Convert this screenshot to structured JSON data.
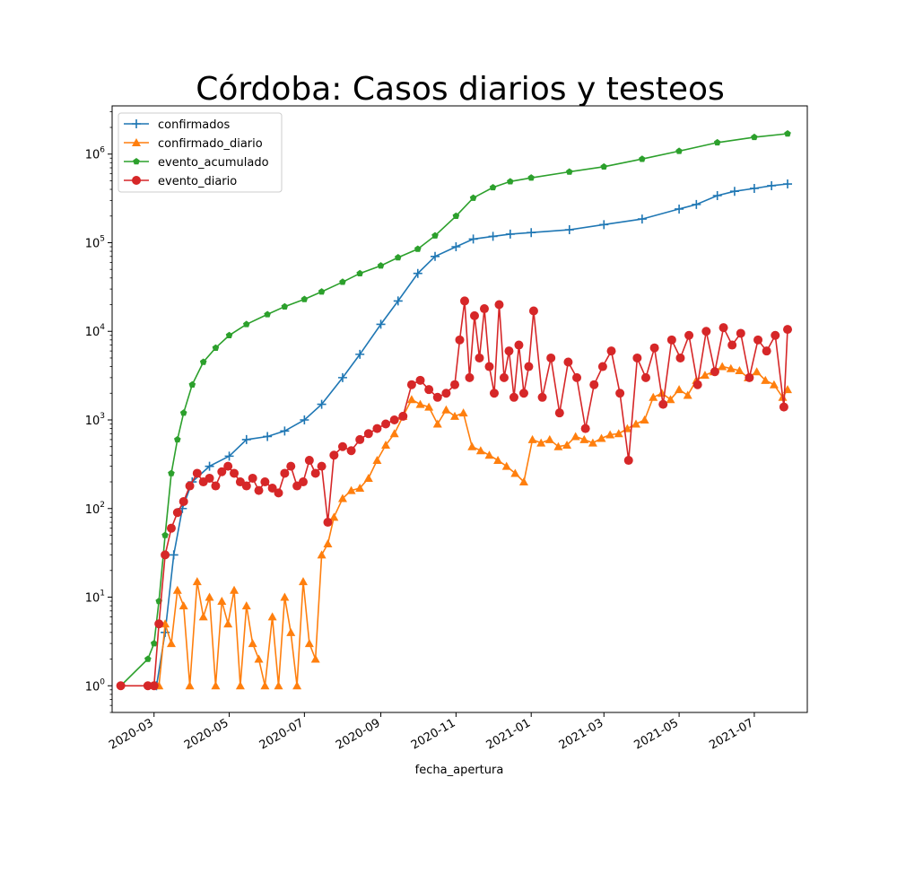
{
  "chart_data": {
    "type": "line",
    "title": "Córdoba: Casos diarios y testeos",
    "xlabel": "fecha_apertura",
    "ylabel": "",
    "yscale": "log",
    "ylim": [
      0.5,
      3500000
    ],
    "xlim": [
      "2020-01-27",
      "2021-08-13"
    ],
    "grid": false,
    "legend_position": "top-left",
    "x_ticks": [
      "2020-03",
      "2020-05",
      "2020-07",
      "2020-09",
      "2020-11",
      "2021-01",
      "2021-03",
      "2021-05",
      "2021-07"
    ],
    "y_ticks": [
      {
        "value": 1,
        "base": "10",
        "exp": "0"
      },
      {
        "value": 10,
        "base": "10",
        "exp": "1"
      },
      {
        "value": 100,
        "base": "10",
        "exp": "2"
      },
      {
        "value": 1000,
        "base": "10",
        "exp": "3"
      },
      {
        "value": 10000,
        "base": "10",
        "exp": "4"
      },
      {
        "value": 100000,
        "base": "10",
        "exp": "5"
      },
      {
        "value": 1000000,
        "base": "10",
        "exp": "6"
      }
    ],
    "series": [
      {
        "name": "confirmados",
        "color": "#1f77b4",
        "marker": "plus",
        "x": [
          "2020-03-03",
          "2020-03-10",
          "2020-03-17",
          "2020-03-24",
          "2020-04-01",
          "2020-04-15",
          "2020-05-01",
          "2020-05-15",
          "2020-06-01",
          "2020-06-15",
          "2020-07-01",
          "2020-07-15",
          "2020-08-01",
          "2020-08-15",
          "2020-09-01",
          "2020-09-15",
          "2020-10-01",
          "2020-10-15",
          "2020-11-01",
          "2020-11-15",
          "2020-12-01",
          "2020-12-15",
          "2021-01-01",
          "2021-02-01",
          "2021-03-01",
          "2021-04-01",
          "2021-05-01",
          "2021-05-15",
          "2021-06-01",
          "2021-06-15",
          "2021-07-01",
          "2021-07-15",
          "2021-07-28"
        ],
        "values": [
          1,
          4,
          30,
          100,
          200,
          300,
          390,
          600,
          650,
          750,
          1000,
          1500,
          3000,
          5500,
          12000,
          22000,
          45000,
          70000,
          90000,
          110000,
          118000,
          125000,
          130000,
          140000,
          160000,
          185000,
          240000,
          270000,
          340000,
          380000,
          410000,
          440000,
          460000
        ]
      },
      {
        "name": "confirmado_diario",
        "color": "#ff7f0e",
        "marker": "triangle",
        "x": [
          "2020-03-05",
          "2020-03-10",
          "2020-03-15",
          "2020-03-20",
          "2020-03-25",
          "2020-03-30",
          "2020-04-05",
          "2020-04-10",
          "2020-04-15",
          "2020-04-20",
          "2020-04-25",
          "2020-04-30",
          "2020-05-05",
          "2020-05-10",
          "2020-05-15",
          "2020-05-20",
          "2020-05-25",
          "2020-05-30",
          "2020-06-05",
          "2020-06-10",
          "2020-06-15",
          "2020-06-20",
          "2020-06-25",
          "2020-06-30",
          "2020-07-05",
          "2020-07-10",
          "2020-07-15",
          "2020-07-20",
          "2020-07-25",
          "2020-08-01",
          "2020-08-08",
          "2020-08-15",
          "2020-08-22",
          "2020-08-29",
          "2020-09-05",
          "2020-09-12",
          "2020-09-19",
          "2020-09-26",
          "2020-10-03",
          "2020-10-10",
          "2020-10-17",
          "2020-10-24",
          "2020-10-31",
          "2020-11-07",
          "2020-11-14",
          "2020-11-21",
          "2020-11-28",
          "2020-12-05",
          "2020-12-12",
          "2020-12-19",
          "2020-12-26",
          "2021-01-02",
          "2021-01-09",
          "2021-01-16",
          "2021-01-23",
          "2021-01-30",
          "2021-02-06",
          "2021-02-13",
          "2021-02-20",
          "2021-02-27",
          "2021-03-06",
          "2021-03-13",
          "2021-03-20",
          "2021-03-27",
          "2021-04-03",
          "2021-04-10",
          "2021-04-17",
          "2021-04-24",
          "2021-05-01",
          "2021-05-08",
          "2021-05-15",
          "2021-05-22",
          "2021-05-29",
          "2021-06-05",
          "2021-06-12",
          "2021-06-19",
          "2021-06-26",
          "2021-07-03",
          "2021-07-10",
          "2021-07-17",
          "2021-07-24",
          "2021-07-28"
        ],
        "values": [
          1,
          5,
          3,
          12,
          8,
          1,
          15,
          6,
          10,
          1,
          9,
          5,
          12,
          1,
          8,
          3,
          2,
          1,
          6,
          1,
          10,
          4,
          1,
          15,
          3,
          2,
          30,
          40,
          80,
          130,
          160,
          170,
          220,
          350,
          520,
          700,
          1100,
          1700,
          1500,
          1400,
          900,
          1300,
          1100,
          1200,
          500,
          450,
          400,
          350,
          300,
          250,
          200,
          600,
          550,
          600,
          500,
          520,
          650,
          600,
          550,
          620,
          680,
          700,
          800,
          900,
          1000,
          1800,
          2000,
          1700,
          2200,
          1900,
          2800,
          3200,
          3500,
          4000,
          3800,
          3600,
          3000,
          3500,
          2800,
          2500,
          1800,
          2200
        ]
      },
      {
        "name": "evento_acumulado",
        "color": "#2ca02c",
        "marker": "pentagon",
        "x": [
          "2020-02-03",
          "2020-02-25",
          "2020-03-01",
          "2020-03-05",
          "2020-03-10",
          "2020-03-15",
          "2020-03-20",
          "2020-03-25",
          "2020-04-01",
          "2020-04-10",
          "2020-04-20",
          "2020-05-01",
          "2020-05-15",
          "2020-06-01",
          "2020-06-15",
          "2020-07-01",
          "2020-07-15",
          "2020-08-01",
          "2020-08-15",
          "2020-09-01",
          "2020-09-15",
          "2020-10-01",
          "2020-10-15",
          "2020-11-01",
          "2020-11-15",
          "2020-12-01",
          "2020-12-15",
          "2021-01-01",
          "2021-02-01",
          "2021-03-01",
          "2021-04-01",
          "2021-05-01",
          "2021-06-01",
          "2021-07-01",
          "2021-07-28"
        ],
        "values": [
          1,
          2,
          3,
          9,
          50,
          250,
          600,
          1200,
          2500,
          4500,
          6500,
          9000,
          12000,
          15500,
          19000,
          23000,
          28000,
          36000,
          45000,
          55000,
          68000,
          85000,
          120000,
          200000,
          320000,
          420000,
          490000,
          540000,
          630000,
          720000,
          880000,
          1080000,
          1350000,
          1550000,
          1700000
        ]
      },
      {
        "name": "evento_diario",
        "color": "#d62728",
        "marker": "circle",
        "x": [
          "2020-02-03",
          "2020-02-25",
          "2020-03-01",
          "2020-03-05",
          "2020-03-10",
          "2020-03-15",
          "2020-03-20",
          "2020-03-25",
          "2020-03-30",
          "2020-04-05",
          "2020-04-10",
          "2020-04-15",
          "2020-04-20",
          "2020-04-25",
          "2020-04-30",
          "2020-05-05",
          "2020-05-10",
          "2020-05-15",
          "2020-05-20",
          "2020-05-25",
          "2020-05-30",
          "2020-06-05",
          "2020-06-10",
          "2020-06-15",
          "2020-06-20",
          "2020-06-25",
          "2020-06-30",
          "2020-07-05",
          "2020-07-10",
          "2020-07-15",
          "2020-07-20",
          "2020-07-25",
          "2020-08-01",
          "2020-08-08",
          "2020-08-15",
          "2020-08-22",
          "2020-08-29",
          "2020-09-05",
          "2020-09-12",
          "2020-09-19",
          "2020-09-26",
          "2020-10-03",
          "2020-10-10",
          "2020-10-17",
          "2020-10-24",
          "2020-10-31",
          "2020-11-04",
          "2020-11-08",
          "2020-11-12",
          "2020-11-16",
          "2020-11-20",
          "2020-11-24",
          "2020-11-28",
          "2020-12-02",
          "2020-12-06",
          "2020-12-10",
          "2020-12-14",
          "2020-12-18",
          "2020-12-22",
          "2020-12-26",
          "2020-12-30",
          "2021-01-03",
          "2021-01-10",
          "2021-01-17",
          "2021-01-24",
          "2021-01-31",
          "2021-02-07",
          "2021-02-14",
          "2021-02-21",
          "2021-02-28",
          "2021-03-07",
          "2021-03-14",
          "2021-03-21",
          "2021-03-28",
          "2021-04-04",
          "2021-04-11",
          "2021-04-18",
          "2021-04-25",
          "2021-05-02",
          "2021-05-09",
          "2021-05-16",
          "2021-05-23",
          "2021-05-30",
          "2021-06-06",
          "2021-06-13",
          "2021-06-20",
          "2021-06-27",
          "2021-07-04",
          "2021-07-11",
          "2021-07-18",
          "2021-07-25",
          "2021-07-28"
        ],
        "values": [
          1,
          1,
          1,
          5,
          30,
          60,
          90,
          120,
          180,
          250,
          200,
          220,
          180,
          260,
          300,
          250,
          200,
          180,
          220,
          160,
          200,
          170,
          150,
          250,
          300,
          180,
          200,
          350,
          250,
          300,
          70,
          400,
          500,
          450,
          600,
          700,
          800,
          900,
          1000,
          1100,
          2500,
          2800,
          2200,
          1800,
          2000,
          2500,
          8000,
          22000,
          3000,
          15000,
          5000,
          18000,
          4000,
          2000,
          20000,
          3000,
          6000,
          1800,
          7000,
          2000,
          4000,
          17000,
          1800,
          5000,
          1200,
          4500,
          3000,
          800,
          2500,
          4000,
          6000,
          2000,
          350,
          5000,
          3000,
          6500,
          1500,
          8000,
          5000,
          9000,
          2500,
          10000,
          3500,
          11000,
          7000,
          9500,
          3000,
          8000,
          6000,
          9000,
          1400,
          10500
        ]
      }
    ]
  }
}
